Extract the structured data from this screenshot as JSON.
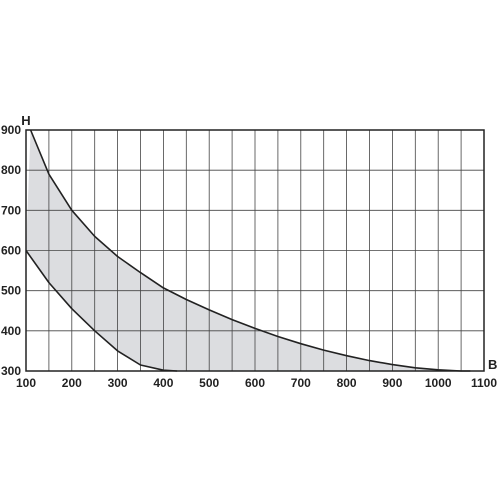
{
  "chart_data": {
    "type": "area",
    "xlabel": "B",
    "ylabel": "H",
    "xlim": [
      100,
      1100
    ],
    "ylim": [
      300,
      900
    ],
    "x_ticks": [
      100,
      200,
      300,
      400,
      500,
      600,
      700,
      800,
      900,
      1000,
      1100
    ],
    "y_ticks": [
      300,
      400,
      500,
      600,
      700,
      800,
      900
    ],
    "x_grid_step": 50,
    "y_grid_step": 100,
    "grid": true,
    "colors": {
      "fill": "#dcdde0",
      "line": "#222222",
      "grid": "#444444"
    },
    "series": [
      {
        "x": [
          110,
          150,
          200,
          250,
          300,
          350,
          400,
          450,
          500,
          550,
          600,
          650,
          700,
          750,
          800,
          850,
          900,
          950,
          1000,
          1050,
          1070
        ],
        "y": [
          900,
          790,
          700,
          635,
          585,
          545,
          507,
          478,
          452,
          428,
          406,
          386,
          368,
          352,
          338,
          326,
          316,
          308,
          303,
          300,
          300
        ]
      },
      {
        "x": [
          100,
          150,
          200,
          250,
          300,
          350,
          400,
          430
        ],
        "y": [
          600,
          520,
          455,
          400,
          350,
          315,
          302,
          300
        ]
      }
    ]
  }
}
